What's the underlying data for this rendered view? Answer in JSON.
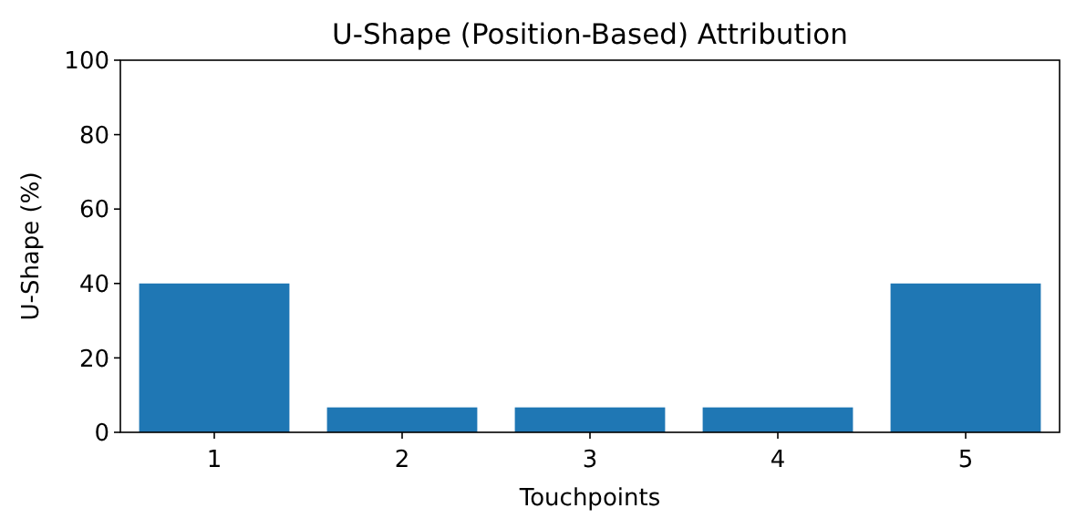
{
  "chart_data": {
    "type": "bar",
    "title": "U-Shape (Position-Based) Attribution",
    "xlabel": "Touchpoints",
    "ylabel": "U-Shape (%)",
    "categories": [
      "1",
      "2",
      "3",
      "4",
      "5"
    ],
    "values": [
      40,
      6.7,
      6.7,
      6.7,
      40
    ],
    "color": "#1f77b4",
    "ylim": [
      0,
      100
    ],
    "yticks": [
      0,
      20,
      40,
      60,
      80,
      100
    ]
  }
}
